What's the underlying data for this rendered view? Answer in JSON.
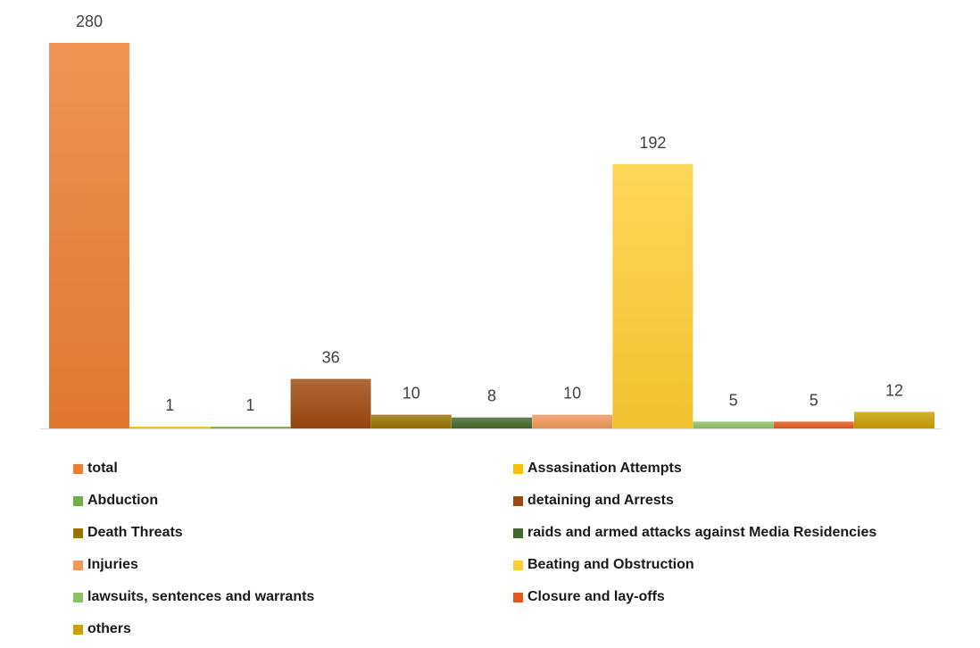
{
  "chart_data": {
    "type": "bar",
    "categories": [
      "total",
      "Assasination Attempts",
      "Abduction",
      "detaining and Arrests",
      "Death Threats",
      "raids and armed attacks against Media Residencies",
      "Injuries",
      "Beating and Obstruction",
      "lawsuits, sentences and warrants",
      "Closure and lay-offs",
      "others"
    ],
    "values": [
      280,
      1,
      1,
      36,
      10,
      8,
      10,
      192,
      5,
      5,
      12
    ],
    "value_labels": [
      "280",
      "1",
      "1",
      "36",
      "10",
      "8",
      "10",
      "192",
      "5",
      "5",
      "12"
    ],
    "colors": [
      "#ED7D31",
      "#FFC000",
      "#70AD47",
      "#9E480E",
      "#997300",
      "#43682B",
      "#F1975A",
      "#FFCD33",
      "#8CC168",
      "#E55A1C",
      "#C9A000"
    ],
    "ylim": [
      0,
      280
    ],
    "grid": false,
    "legend_position": "bottom",
    "title": "",
    "xlabel": "",
    "ylabel": ""
  }
}
